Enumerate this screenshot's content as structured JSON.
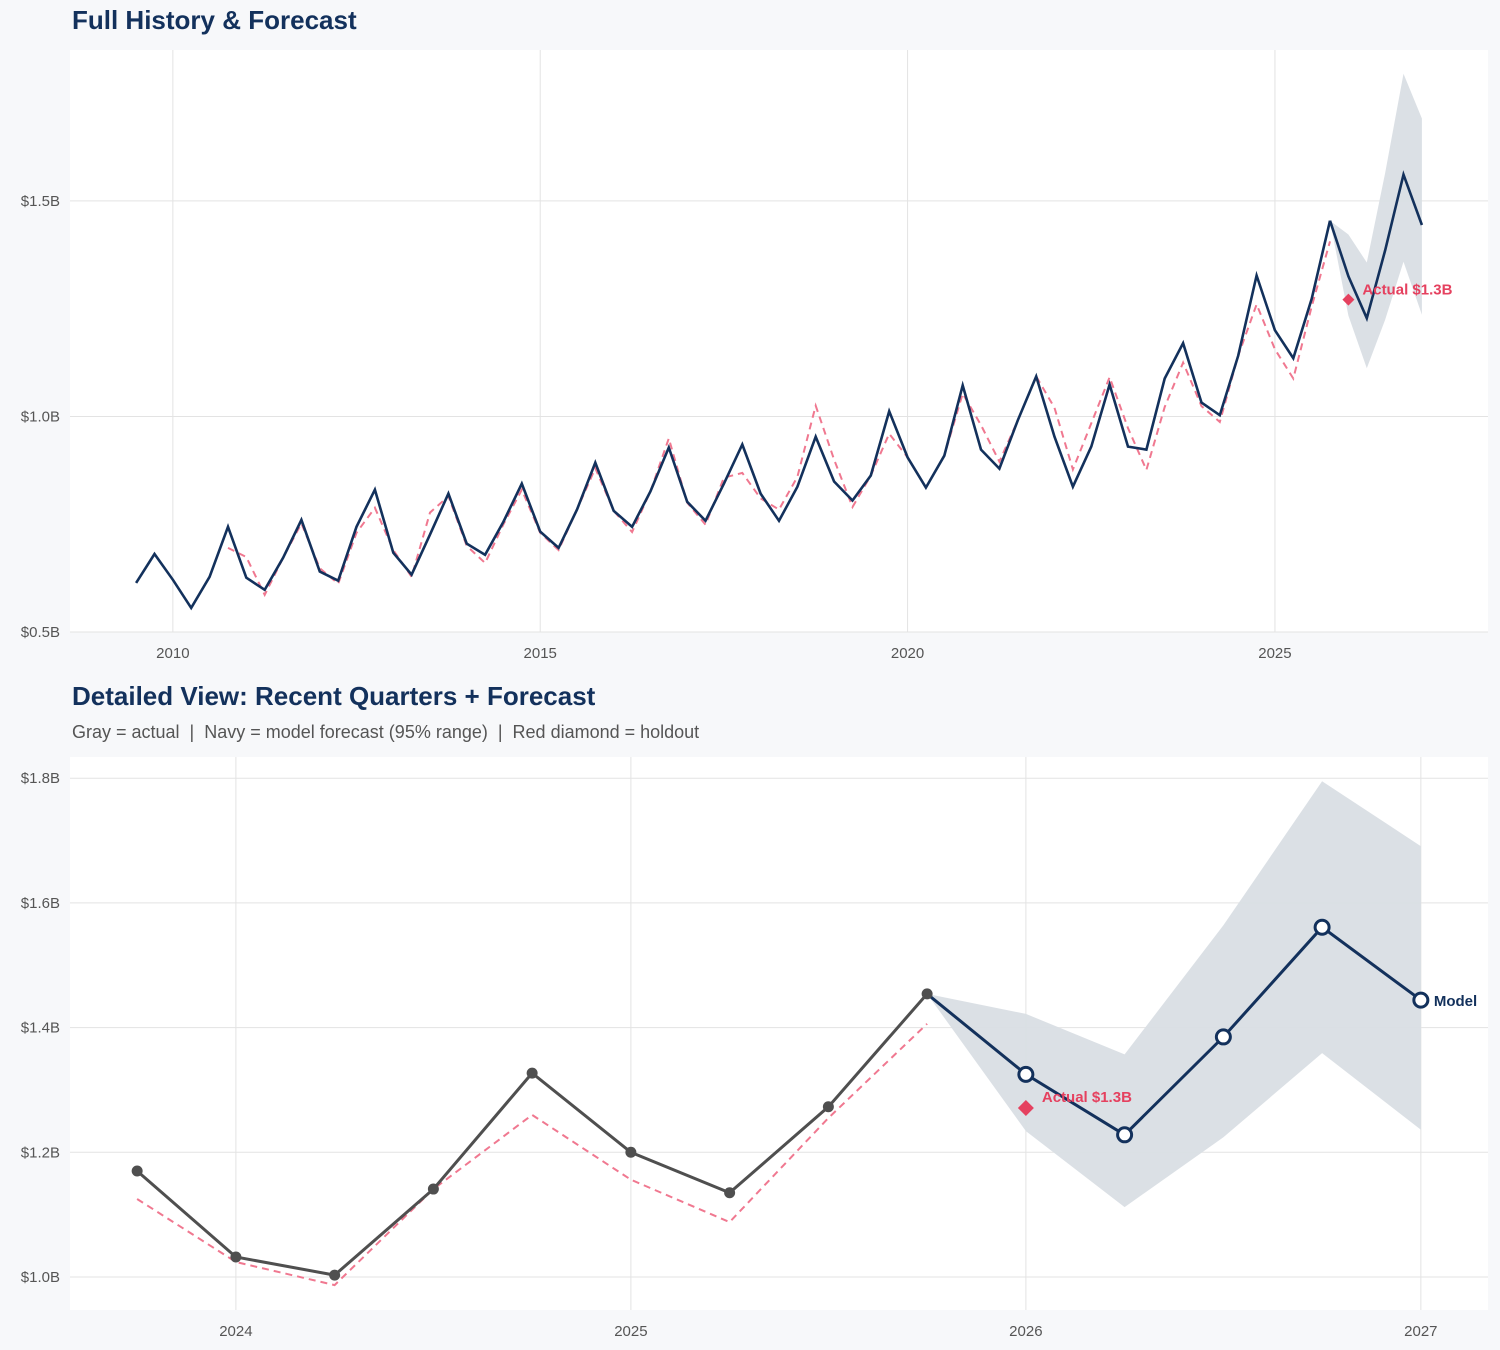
{
  "colors": {
    "actual_top": "#13315c",
    "actual_bottom": "#4f4f4f",
    "forecast": "#13315c",
    "fitted": "#f07890",
    "band": "#d9dee4",
    "holdout": "#e5415f",
    "panel": "#ffffff",
    "grid": "#e3e3e3"
  },
  "chart_data": [
    {
      "type": "line",
      "title": "Full History & Forecast",
      "xlim": [
        2008.6,
        2027.9
      ],
      "ylim": [
        0.5,
        1.85
      ],
      "y_unit": "$B",
      "x_ticks": [
        2010,
        2015,
        2020,
        2025
      ],
      "x_tick_labels": [
        "2010",
        "2015",
        "2020",
        "2025"
      ],
      "y_ticks": [
        0.5,
        1.0,
        1.5
      ],
      "y_tick_labels": [
        "$0.5B",
        "$1.0B",
        "$1.5B"
      ],
      "grid": true,
      "actual": {
        "x_start": 2009.5,
        "step": 0.25,
        "values": [
          0.614,
          0.681,
          0.621,
          0.556,
          0.628,
          0.744,
          0.626,
          0.598,
          0.672,
          0.76,
          0.64,
          0.619,
          0.744,
          0.83,
          0.684,
          0.633,
          0.726,
          0.821,
          0.705,
          0.679,
          0.756,
          0.844,
          0.733,
          0.695,
          0.784,
          0.893,
          0.781,
          0.744,
          0.826,
          0.928,
          0.802,
          0.758,
          0.844,
          0.935,
          0.821,
          0.758,
          0.837,
          0.953,
          0.849,
          0.805,
          0.863,
          1.012,
          0.905,
          0.835,
          0.909,
          1.072,
          0.923,
          0.879,
          0.991,
          1.093,
          0.953,
          0.837,
          0.93,
          1.074,
          0.93,
          0.923,
          1.088,
          1.17,
          1.032,
          1.003,
          1.141,
          1.327,
          1.2,
          1.135,
          1.273,
          1.454
        ]
      },
      "fitted": {
        "x_start": 2010.75,
        "step": 0.25,
        "values": [
          0.695,
          0.674,
          0.586,
          0.672,
          0.752,
          0.648,
          0.612,
          0.73,
          0.788,
          0.69,
          0.628,
          0.777,
          0.815,
          0.7,
          0.66,
          0.75,
          0.83,
          0.73,
          0.69,
          0.784,
          0.88,
          0.781,
          0.732,
          0.826,
          0.949,
          0.8,
          0.749,
          0.858,
          0.869,
          0.81,
          0.784,
          0.86,
          1.025,
          0.9,
          0.79,
          0.863,
          0.96,
          0.905,
          0.835,
          0.909,
          1.053,
          0.98,
          0.895,
          0.991,
          1.093,
          1.02,
          0.877,
          0.984,
          1.091,
          0.973,
          0.876,
          1.022,
          1.125,
          1.024,
          0.987,
          1.141,
          1.26,
          1.156,
          1.088,
          1.255,
          1.406
        ]
      },
      "forecast": {
        "x": [
          2025.75,
          2026.0,
          2026.25,
          2026.5,
          2026.75,
          2027.0
        ],
        "values": [
          1.454,
          1.325,
          1.228,
          1.385,
          1.561,
          1.444
        ],
        "upper": [
          1.454,
          1.422,
          1.357,
          1.564,
          1.795,
          1.691
        ],
        "lower": [
          1.454,
          1.234,
          1.112,
          1.224,
          1.359,
          1.236
        ]
      },
      "holdout": {
        "x": 2026.0,
        "value": 1.271,
        "label": "Actual $1.3B"
      }
    },
    {
      "type": "line",
      "title": "Detailed View: Recent Quarters + Forecast",
      "subtitle": "Gray = actual  |  Navy = model forecast (95% range)  |  Red diamond = holdout",
      "xlim": [
        2023.58,
        2027.17
      ],
      "ylim": [
        0.947,
        1.834
      ],
      "x_ticks": [
        2024,
        2025,
        2026,
        2027
      ],
      "x_tick_labels": [
        "2024",
        "2025",
        "2026",
        "2027"
      ],
      "y_ticks": [
        1.0,
        1.2,
        1.4,
        1.6,
        1.8
      ],
      "y_tick_labels": [
        "$1.0B",
        "$1.2B",
        "$1.4B",
        "$1.6B",
        "$1.8B"
      ],
      "grid": true,
      "actual": {
        "x": [
          2023.75,
          2024.0,
          2024.25,
          2024.5,
          2024.75,
          2025.0,
          2025.25,
          2025.5,
          2025.75
        ],
        "values": [
          1.17,
          1.032,
          1.003,
          1.141,
          1.327,
          1.2,
          1.135,
          1.273,
          1.454
        ]
      },
      "fitted": {
        "x": [
          2023.75,
          2024.0,
          2024.25,
          2024.5,
          2024.75,
          2025.0,
          2025.25,
          2025.5,
          2025.75
        ],
        "values": [
          1.125,
          1.024,
          0.987,
          1.141,
          1.26,
          1.156,
          1.088,
          1.255,
          1.406
        ]
      },
      "forecast": {
        "x": [
          2025.75,
          2026.0,
          2026.25,
          2026.5,
          2026.75,
          2027.0
        ],
        "values": [
          1.454,
          1.325,
          1.228,
          1.385,
          1.561,
          1.444
        ],
        "upper": [
          1.454,
          1.422,
          1.357,
          1.564,
          1.795,
          1.691
        ],
        "lower": [
          1.454,
          1.234,
          1.112,
          1.224,
          1.359,
          1.236
        ],
        "label": "Model"
      },
      "holdout": {
        "x": 2026.0,
        "value": 1.271,
        "label": "Actual $1.3B"
      }
    }
  ]
}
